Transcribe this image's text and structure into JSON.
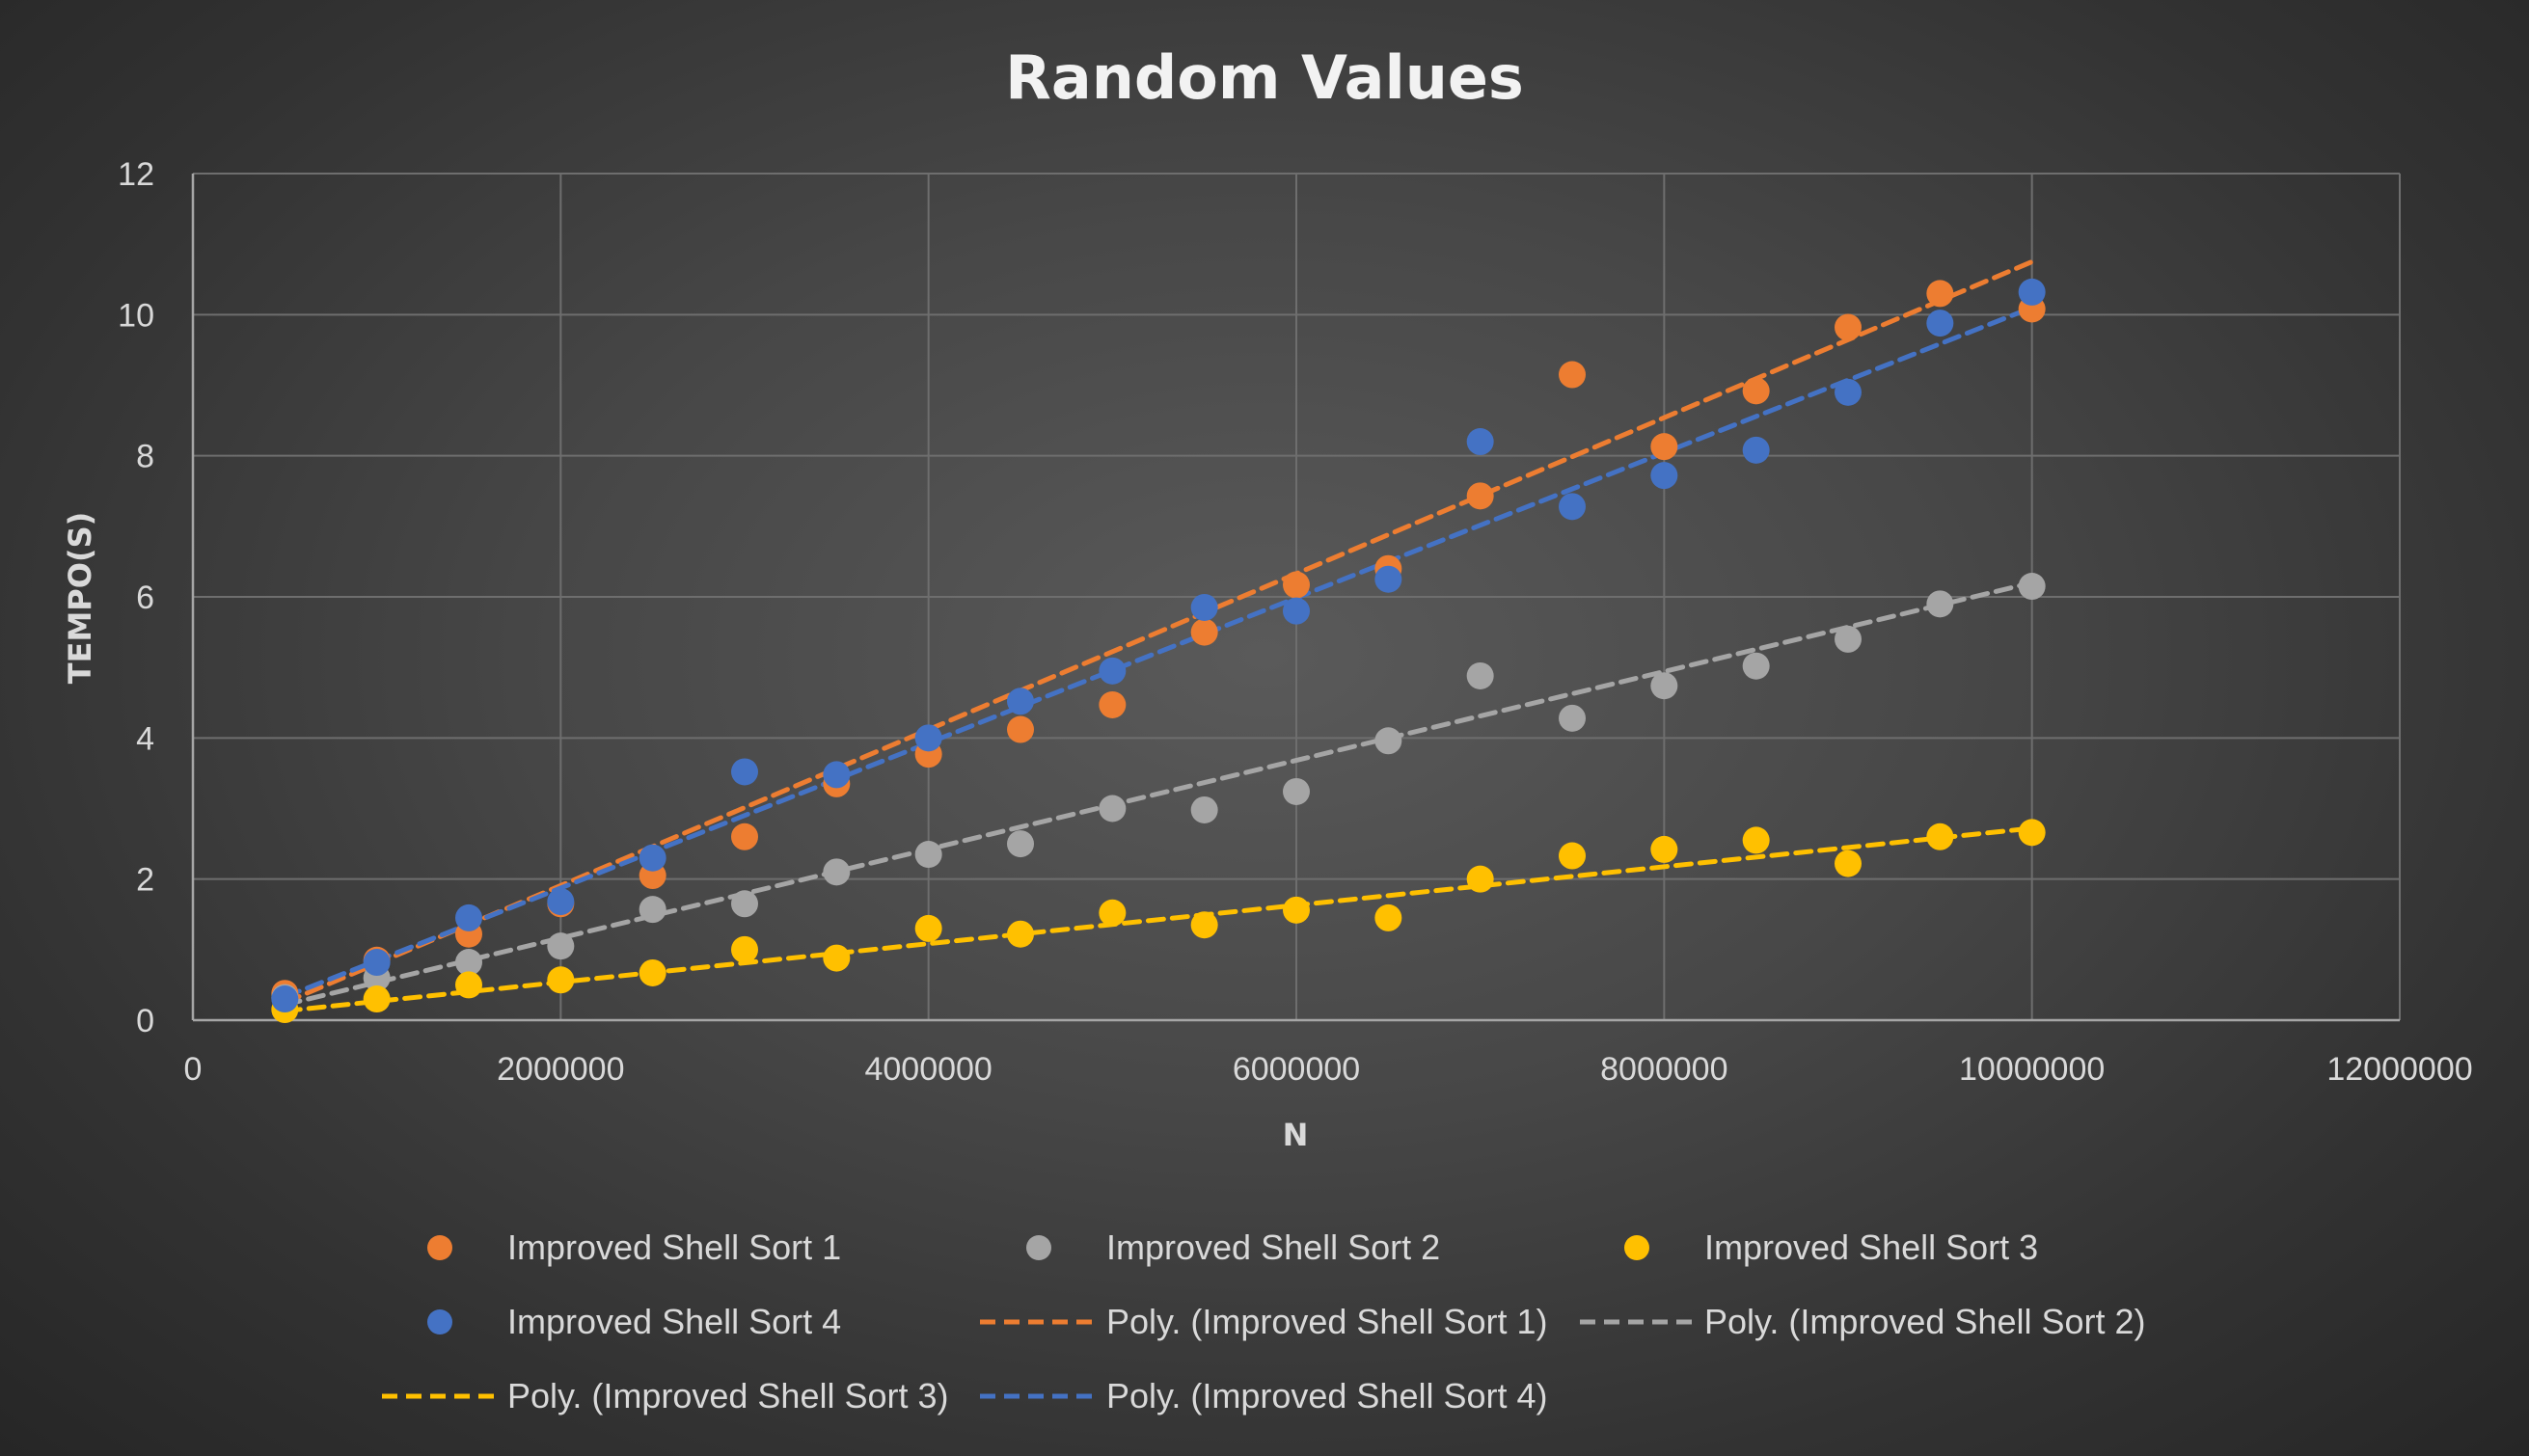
{
  "chart_data": {
    "type": "scatter",
    "title": "Random Values",
    "xlabel": "N",
    "ylabel": "TEMPO(S)",
    "xlim": [
      0,
      12000000
    ],
    "ylim": [
      0,
      12
    ],
    "xticks": [
      0,
      2000000,
      4000000,
      6000000,
      8000000,
      10000000,
      12000000
    ],
    "yticks": [
      0,
      2,
      4,
      6,
      8,
      10,
      12
    ],
    "xtick_labels": [
      "0",
      "2000000",
      "4000000",
      "6000000",
      "8000000",
      "10000000",
      "12000000"
    ],
    "ytick_labels": [
      "0",
      "2",
      "4",
      "6",
      "8",
      "10",
      "12"
    ],
    "grid": true,
    "legend_position": "bottom",
    "x": [
      500000,
      1000000,
      1500000,
      2000000,
      2500000,
      3000000,
      3500000,
      4000000,
      4500000,
      5000000,
      5500000,
      6000000,
      6500000,
      7000000,
      7500000,
      8000000,
      8500000,
      9000000,
      9500000,
      10000000
    ],
    "series": [
      {
        "name": "Improved Shell Sort 1",
        "color": "#ed7d31",
        "values": [
          0.38,
          0.85,
          1.22,
          1.65,
          2.05,
          2.6,
          3.35,
          3.77,
          4.12,
          4.47,
          5.5,
          6.17,
          6.4,
          7.43,
          9.15,
          8.13,
          8.92,
          9.82,
          10.3,
          10.08
        ]
      },
      {
        "name": "Improved Shell Sort 2",
        "color": "#a5a5a5",
        "values": [
          0.32,
          0.6,
          0.82,
          1.05,
          1.57,
          1.65,
          2.1,
          2.35,
          2.5,
          3.0,
          2.98,
          3.24,
          3.96,
          4.88,
          4.28,
          4.74,
          5.02,
          5.4,
          5.9,
          6.15
        ]
      },
      {
        "name": "Improved Shell Sort 3",
        "color": "#ffc000",
        "values": [
          0.15,
          0.3,
          0.5,
          0.57,
          0.67,
          1.0,
          0.88,
          1.3,
          1.22,
          1.52,
          1.35,
          1.56,
          1.45,
          2.0,
          2.33,
          2.42,
          2.55,
          2.22,
          2.6,
          2.66
        ]
      },
      {
        "name": "Improved Shell Sort 4",
        "color": "#4472c4",
        "values": [
          0.3,
          0.82,
          1.45,
          1.68,
          2.3,
          3.52,
          3.48,
          4.0,
          4.52,
          4.95,
          5.85,
          5.8,
          6.25,
          8.2,
          7.28,
          7.72,
          8.08,
          8.9,
          9.88,
          10.32
        ]
      }
    ],
    "trendlines": [
      {
        "name": "Poly. (Improved Shell Sort 1)",
        "color": "#ed7d31",
        "y_start": 0.25,
        "y_end": 10.75
      },
      {
        "name": "Poly. (Improved Shell Sort 2)",
        "color": "#a5a5a5",
        "y_start": 0.22,
        "y_end": 6.2
      },
      {
        "name": "Poly. (Improved Shell Sort 3)",
        "color": "#ffc000",
        "y_start": 0.13,
        "y_end": 2.72
      },
      {
        "name": "Poly. (Improved Shell Sort 4)",
        "color": "#4472c4",
        "y_start": 0.33,
        "y_end": 10.1
      }
    ]
  }
}
